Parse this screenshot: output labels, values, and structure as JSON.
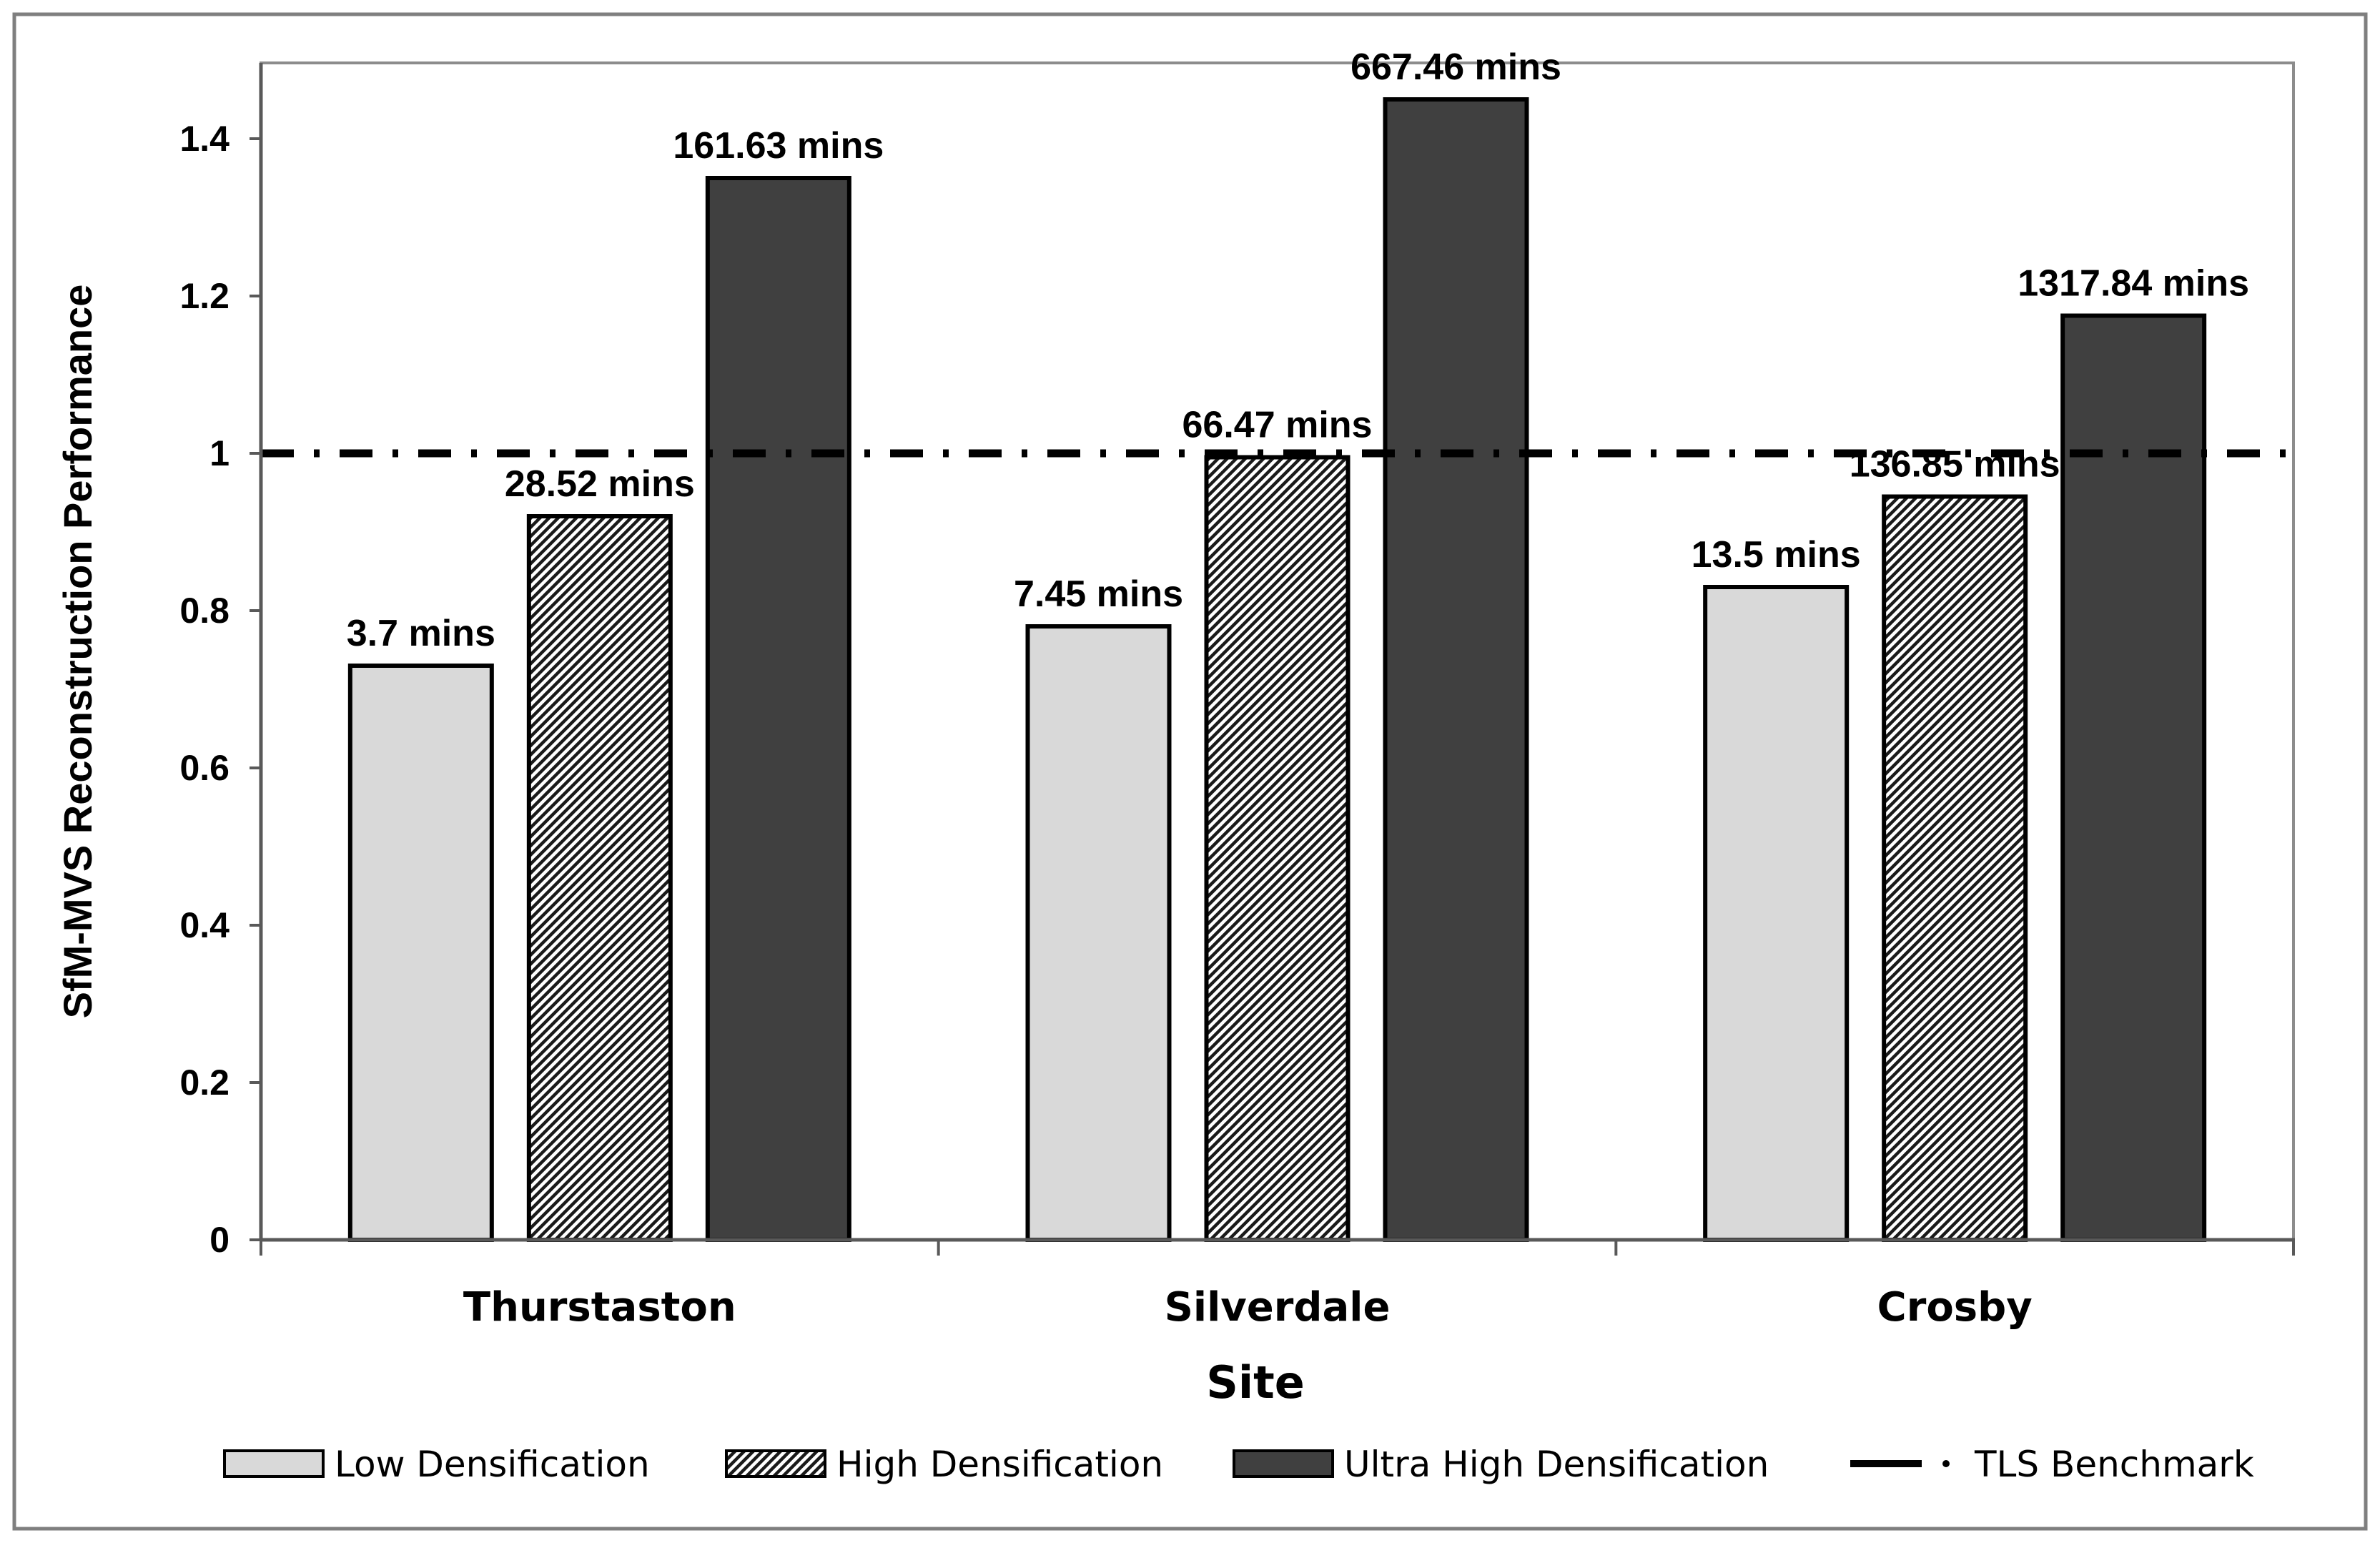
{
  "chart_data": {
    "type": "bar",
    "title": "",
    "xlabel": "Site",
    "ylabel": "SfM-MVS  Reconstruction Performance",
    "categories": [
      "Thurstaston",
      "Silverdale",
      "Crosby"
    ],
    "ylim": [
      0,
      1.5
    ],
    "yticks": [
      0,
      0.2,
      0.4,
      0.6,
      0.8,
      1,
      1.2,
      1.4
    ],
    "ytick_labels": [
      "0",
      "0.2",
      "0.4",
      "0.6",
      "0.8",
      "1",
      "1.2",
      "1.4"
    ],
    "grid": false,
    "series": [
      {
        "name": "Low Densification",
        "fill": "#d9d9d9",
        "pattern": "solid",
        "values": [
          0.73,
          0.78,
          0.83
        ],
        "labels": [
          "3.7 mins",
          "7.45 mins",
          "13.5 mins"
        ]
      },
      {
        "name": "High Densification",
        "fill": "#ffffff",
        "pattern": "hatch",
        "values": [
          0.92,
          0.995,
          0.945
        ],
        "labels": [
          "28.52 mins",
          "66.47 mins",
          "136.85 mins"
        ]
      },
      {
        "name": "Ultra High Densification",
        "fill": "#404040",
        "pattern": "solid",
        "values": [
          1.35,
          1.45,
          1.175
        ],
        "labels": [
          "161.63 mins",
          "667.46 mins",
          "1317.84 mins"
        ]
      }
    ],
    "reference_line": {
      "name": "TLS Benchmark",
      "value": 1,
      "style": "dash-dot",
      "color": "#000000"
    },
    "legend_position": "bottom"
  }
}
